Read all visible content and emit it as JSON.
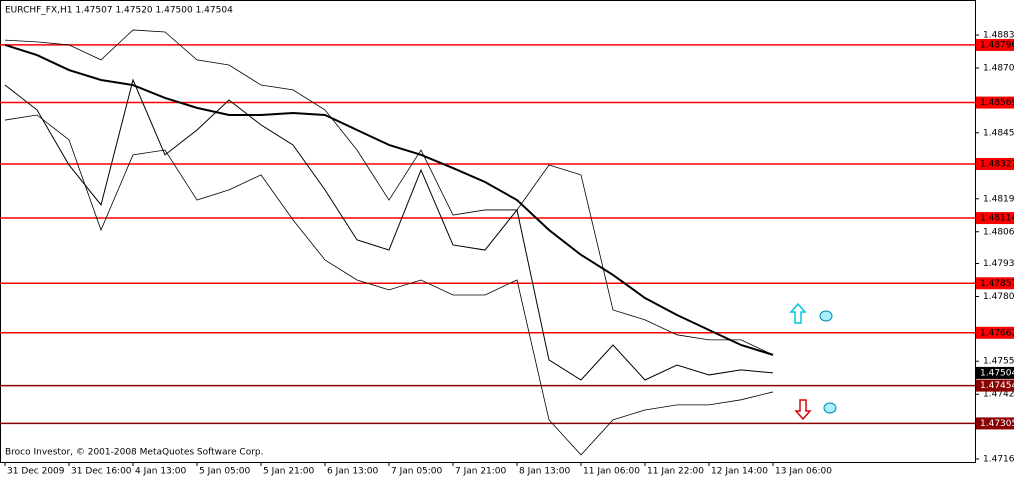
{
  "chart_data": {
    "type": "line",
    "title": "EURCHF_FX,H1  1.47507 1.47520 1.47500 1.47504",
    "footer": "Broco Investor, © 2001-2008 MetaQuotes Software Corp.",
    "x": [
      0,
      8,
      16,
      24,
      32,
      40,
      48,
      56,
      64,
      72,
      80,
      88,
      96,
      104,
      112,
      120,
      128,
      136,
      144,
      152,
      160,
      168,
      176,
      184,
      192
    ],
    "xlim": [
      -1.25,
      242.5
    ],
    "xticks": [
      {
        "value": 0,
        "label": "31 Dec 2009"
      },
      {
        "value": 16,
        "label": "31 Dec 16:00"
      },
      {
        "value": 32,
        "label": "4 Jan 13:00"
      },
      {
        "value": 48,
        "label": "5 Jan 05:00"
      },
      {
        "value": 64,
        "label": "5 Jan 21:00"
      },
      {
        "value": 80,
        "label": "6 Jan 13:00"
      },
      {
        "value": 96,
        "label": "7 Jan 05:00"
      },
      {
        "value": 112,
        "label": "7 Jan 21:00"
      },
      {
        "value": 128,
        "label": "8 Jan 13:00"
      },
      {
        "value": 144,
        "label": "11 Jan 06:00"
      },
      {
        "value": 160,
        "label": "11 Jan 22:00"
      },
      {
        "value": 176,
        "label": "12 Jan 14:00"
      },
      {
        "value": 192,
        "label": "13 Jan 06:00"
      }
    ],
    "ylim": [
      1.47153,
      1.48973
    ],
    "yticks": [
      1.48835,
      1.48705,
      1.4845,
      1.4819,
      1.4806,
      1.47935,
      1.47805,
      1.4755,
      1.4742,
      1.47165
    ],
    "series": [
      {
        "color": "#000000",
        "width": 1,
        "values": [
          1.48638,
          1.4854,
          1.48323,
          1.48166,
          1.48658,
          1.48363,
          1.48461,
          1.48579,
          1.48481,
          1.48402,
          1.48225,
          1.48028,
          1.47988,
          1.48303,
          1.48008,
          1.47988,
          1.48146,
          1.47555,
          1.47476,
          1.47614,
          1.47476,
          1.47535,
          1.47496,
          1.47516,
          1.47504
        ]
      },
      {
        "color": "#000000",
        "width": 2,
        "values": [
          1.48796,
          1.48756,
          1.48697,
          1.48658,
          1.48638,
          1.48587,
          1.48548,
          1.4852,
          1.4852,
          1.48528,
          1.4852,
          1.48461,
          1.48402,
          1.48363,
          1.48311,
          1.48256,
          1.48185,
          1.48067,
          1.47969,
          1.4789,
          1.47799,
          1.47732,
          1.47673,
          1.47614,
          1.47575
        ]
      },
      {
        "color": "#000000",
        "width": 0.8,
        "values": [
          1.48815,
          1.48808,
          1.48796,
          1.48737,
          1.48855,
          1.48847,
          1.48737,
          1.48717,
          1.48638,
          1.48619,
          1.4854,
          1.48382,
          1.48185,
          1.48382,
          1.48126,
          1.48146,
          1.48146,
          1.48323,
          1.48284,
          1.47752,
          1.47713,
          1.47654,
          1.47634,
          1.47634,
          1.47575
        ]
      },
      {
        "color": "#000000",
        "width": 0.8,
        "values": [
          1.485,
          1.4852,
          1.48422,
          1.48067,
          1.48363,
          1.48382,
          1.48185,
          1.48225,
          1.48284,
          1.48107,
          1.47949,
          1.4787,
          1.47831,
          1.4787,
          1.47811,
          1.47811,
          1.4787,
          1.47319,
          1.47181,
          1.47319,
          1.47358,
          1.47378,
          1.47378,
          1.47398,
          1.47429
        ]
      }
    ],
    "levels": [
      1.48796,
      1.48569,
      1.48327,
      1.48114,
      1.47857,
      1.47662,
      1.47454,
      1.47305
    ],
    "level_colors": [
      "#ff0000",
      "#ff0000",
      "#ff0000",
      "#ff0000",
      "#ff0000",
      "#ff0000",
      "#8b0000",
      "#8b0000"
    ],
    "last": 1.47504
  }
}
